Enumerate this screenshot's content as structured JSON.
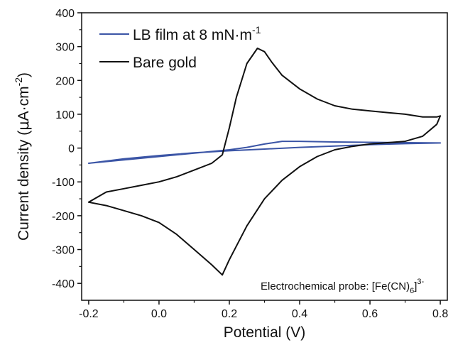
{
  "chart_data": {
    "type": "line",
    "xlabel": "Potential (V)",
    "ylabel": {
      "main": "Current density (",
      "mu": "μ",
      "unit": "A·cm",
      "exp": "-2",
      "close": ")"
    },
    "xlim": [
      -0.22,
      0.82
    ],
    "ylim": [
      -450,
      400
    ],
    "xticks": [
      -0.2,
      0.0,
      0.2,
      0.4,
      0.6,
      0.8
    ],
    "xtick_labels": [
      "-0.2",
      "0.0",
      "0.2",
      "0.4",
      "0.6",
      "0.8"
    ],
    "yticks": [
      -400,
      -300,
      -200,
      -100,
      0,
      100,
      200,
      300,
      400
    ],
    "ytick_labels": [
      "-400",
      "-300",
      "-200",
      "-100",
      "0",
      "100",
      "200",
      "300",
      "400"
    ],
    "grid": false,
    "legend_position": "top-left",
    "annotation": {
      "prefix": "Electrochemical probe: [Fe(CN)",
      "sub": "6",
      "close": "]",
      "sup": "3-"
    },
    "series": [
      {
        "name": "LB film at 8 mN·m",
        "name_sup": "-1",
        "color": "#3b55a6",
        "x": [
          -0.2,
          -0.1,
          0.0,
          0.1,
          0.2,
          0.25,
          0.3,
          0.35,
          0.4,
          0.5,
          0.6,
          0.7,
          0.8,
          0.7,
          0.6,
          0.5,
          0.4,
          0.3,
          0.2,
          0.1,
          0.0,
          -0.1,
          -0.2
        ],
        "y": [
          -45,
          -35,
          -25,
          -15,
          -5,
          2,
          12,
          20,
          20,
          18,
          17,
          16,
          15,
          13,
          10,
          6,
          2,
          -3,
          -8,
          -14,
          -22,
          -32,
          -45
        ]
      },
      {
        "name": "Bare gold",
        "color": "#111111",
        "x": [
          -0.2,
          -0.15,
          -0.1,
          -0.05,
          0.0,
          0.05,
          0.1,
          0.15,
          0.18,
          0.2,
          0.22,
          0.25,
          0.28,
          0.3,
          0.32,
          0.35,
          0.4,
          0.45,
          0.5,
          0.55,
          0.6,
          0.65,
          0.7,
          0.75,
          0.79,
          0.8,
          0.79,
          0.75,
          0.7,
          0.65,
          0.6,
          0.55,
          0.5,
          0.45,
          0.4,
          0.35,
          0.3,
          0.25,
          0.2,
          0.18,
          0.15,
          0.1,
          0.05,
          0.0,
          -0.05,
          -0.1,
          -0.15,
          -0.2
        ],
        "y": [
          -160,
          -130,
          -120,
          -110,
          -100,
          -85,
          -65,
          -45,
          -20,
          60,
          150,
          250,
          295,
          285,
          255,
          215,
          175,
          145,
          125,
          115,
          110,
          105,
          100,
          92,
          92,
          95,
          70,
          35,
          20,
          16,
          12,
          5,
          -5,
          -25,
          -55,
          -95,
          -150,
          -230,
          -330,
          -375,
          -345,
          -300,
          -255,
          -220,
          -200,
          -185,
          -170,
          -160
        ]
      }
    ]
  }
}
